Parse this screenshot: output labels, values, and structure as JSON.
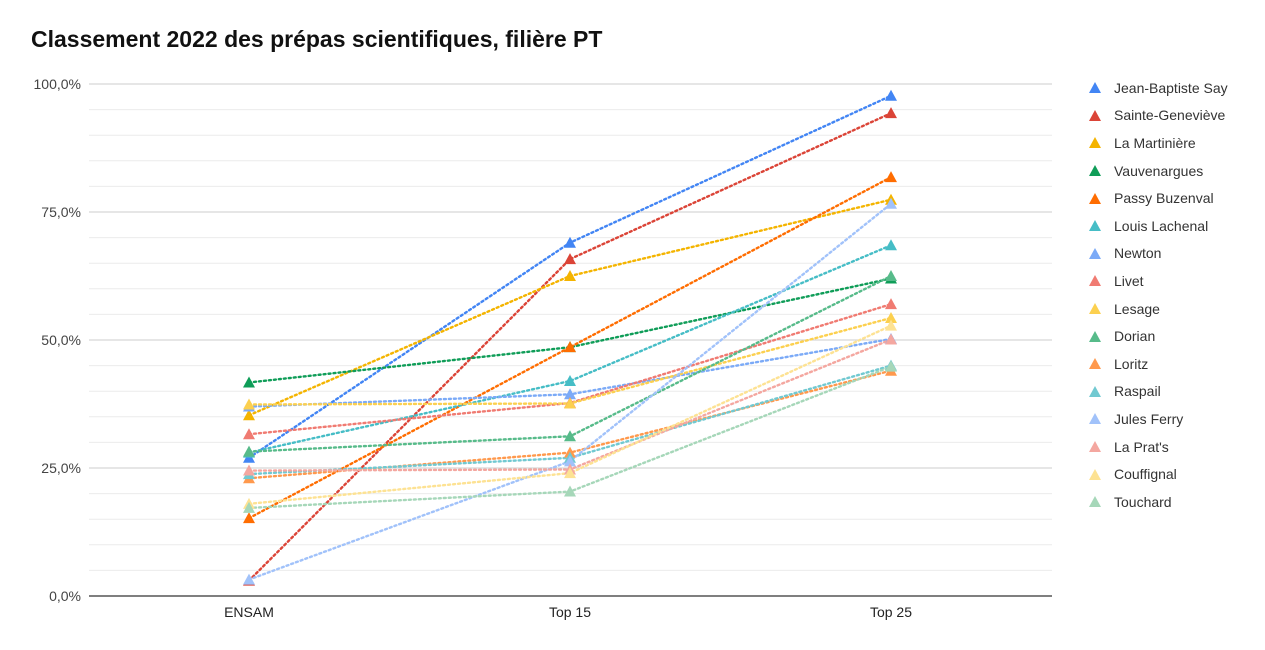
{
  "chart_data": {
    "type": "line",
    "title": "Classement 2022 des prépas scientifiques, filière PT",
    "categories": [
      "ENSAM",
      "Top 15",
      "Top 25"
    ],
    "y_tick_labels": [
      "0,0%",
      "25,0%",
      "50,0%",
      "75,0%",
      "100,0%"
    ],
    "ylim": [
      0,
      100
    ],
    "xlabel": "",
    "ylabel": "",
    "legend_position": "right",
    "series": [
      {
        "name": "Jean-Baptiste Say",
        "color": "#4285f4",
        "values": [
          27.0,
          69.0,
          97.7
        ]
      },
      {
        "name": "Sainte-Geneviève",
        "color": "#db4437",
        "values": [
          3.0,
          65.8,
          94.3
        ]
      },
      {
        "name": "La Martinière",
        "color": "#f4b400",
        "values": [
          35.3,
          62.5,
          77.4
        ]
      },
      {
        "name": "Vauvenargues",
        "color": "#0f9d58",
        "values": [
          41.7,
          48.6,
          62.0
        ]
      },
      {
        "name": "Passy Buzenval",
        "color": "#ff6d01",
        "values": [
          15.2,
          48.6,
          81.8
        ]
      },
      {
        "name": "Louis Lachenal",
        "color": "#46bdc6",
        "values": [
          28.0,
          42.0,
          68.5
        ]
      },
      {
        "name": "Newton",
        "color": "#7baaf7",
        "values": [
          37.0,
          39.4,
          50.2
        ]
      },
      {
        "name": "Livet",
        "color": "#f07b72",
        "values": [
          31.6,
          37.7,
          57.0
        ]
      },
      {
        "name": "Lesage",
        "color": "#fcd04f",
        "values": [
          37.4,
          37.6,
          54.3
        ]
      },
      {
        "name": "Dorian",
        "color": "#57bb8a",
        "values": [
          28.2,
          31.2,
          62.5
        ]
      },
      {
        "name": "Loritz",
        "color": "#ff994d",
        "values": [
          23.0,
          28.0,
          44.0
        ]
      },
      {
        "name": "Raspail",
        "color": "#71c9d1",
        "values": [
          23.8,
          27.0,
          45.0
        ]
      },
      {
        "name": "Jules Ferry",
        "color": "#a1c2fa",
        "values": [
          3.2,
          26.3,
          76.6
        ]
      },
      {
        "name": "La Prat's",
        "color": "#f4a7a0",
        "values": [
          24.5,
          24.7,
          50.1
        ]
      },
      {
        "name": "Couffignal",
        "color": "#fde293",
        "values": [
          18.0,
          24.0,
          52.8
        ]
      },
      {
        "name": "Touchard",
        "color": "#a6d7b9",
        "values": [
          17.2,
          20.4,
          44.8
        ]
      }
    ]
  }
}
